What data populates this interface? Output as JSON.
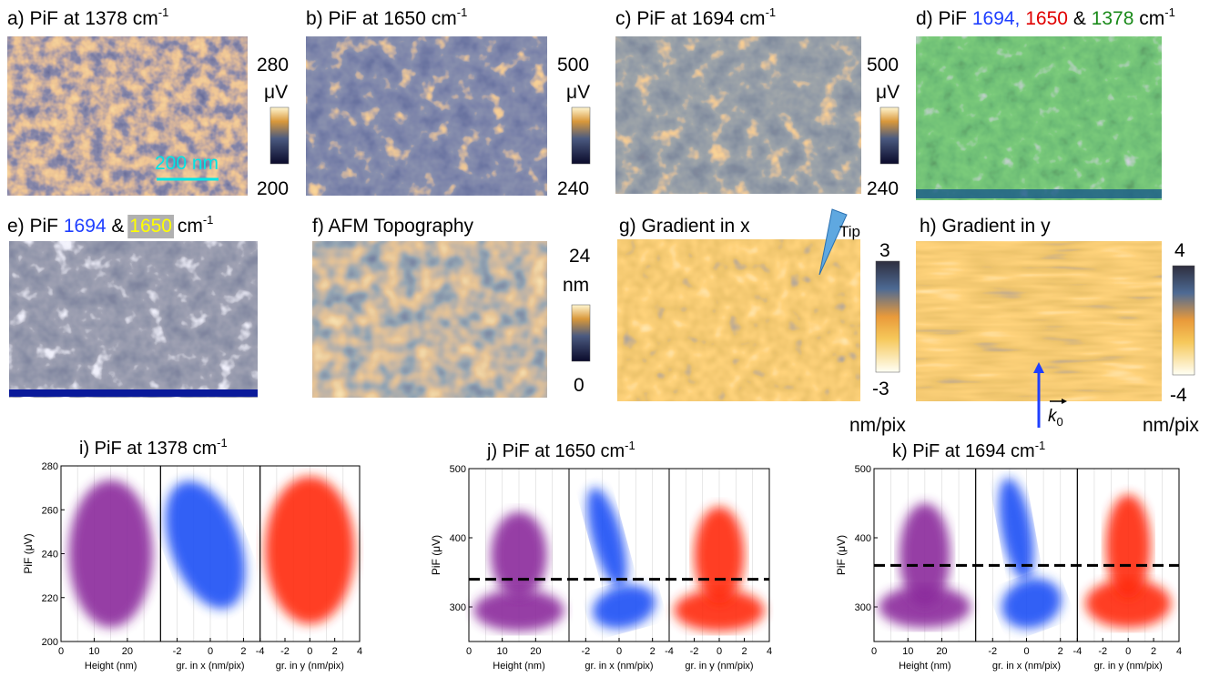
{
  "panels": [
    {
      "title": "a) PiF at 1378 cm",
      "sup": "-1",
      "cbar": {
        "max": 280,
        "unit": "μV",
        "min": 200
      },
      "scalebar": "200 nm"
    },
    {
      "title": "b) PiF at 1650 cm",
      "sup": "-1",
      "cbar": {
        "max": 500,
        "unit": "μV",
        "min": 240
      }
    },
    {
      "title": "c) PiF at 1694 cm",
      "sup": "-1",
      "cbar": {
        "max": 500,
        "unit": "μV",
        "min": 240
      }
    },
    {
      "title": [
        "d) PiF ",
        "1694,",
        "1650",
        "&",
        "1378",
        "cm"
      ],
      "colors": [
        "#000000",
        "#1f3fff",
        "#e00000",
        "#000000",
        "#1a8a1a",
        "#000000"
      ],
      "sup": "-1"
    },
    {
      "title": [
        "e) PiF ",
        "1694",
        "&",
        "1650",
        "cm"
      ],
      "colors": [
        "#000000",
        "#1f3fff",
        "#000000",
        "#ffff00",
        "#000000"
      ],
      "sup": "-1"
    },
    {
      "title": "f) AFM Topography",
      "cbar": {
        "max": 24,
        "unit": "nm",
        "min": 0
      }
    },
    {
      "title": "g) Gradient in x",
      "tip": "Tip",
      "cbar": {
        "max": 3,
        "min": -3,
        "unit": "nm/pix"
      }
    },
    {
      "title": "h) Gradient in y",
      "cbar": {
        "max": 4,
        "min": -4,
        "unit": "nm/pix"
      },
      "k": "k",
      "k_sub": "0"
    }
  ],
  "plots": [
    {
      "title": "i) PiF at 1378 cm",
      "sup": "-1",
      "ylabel": "PiF (μV)",
      "ylim": [
        200,
        280
      ],
      "yticks": [
        200,
        220,
        240,
        260,
        280
      ],
      "subplots": [
        {
          "xlabel": "Height (nm)",
          "xlim": [
            0,
            30
          ],
          "xticks": [
            0,
            10,
            20
          ],
          "color": "#8b2a9c"
        },
        {
          "xlabel": "gr. in x (nm/pix)",
          "xlim": [
            -3,
            3
          ],
          "xticks": [
            -2,
            0,
            2
          ],
          "color": "#1a4ff5"
        },
        {
          "xlabel": "gr. in y (nm/pix)",
          "xlim": [
            -4,
            4
          ],
          "xticks": [
            -4,
            -2,
            0,
            2,
            4
          ],
          "color": "#ff2a10"
        }
      ]
    },
    {
      "title": "j) PiF at 1650 cm",
      "sup": "-1",
      "ylabel": "PiF (μV)",
      "ylim": [
        250,
        500
      ],
      "yticks": [
        300,
        400,
        500
      ],
      "threshold": 340,
      "subplots": [
        {
          "xlabel": "Height (nm)",
          "xlim": [
            0,
            30
          ],
          "xticks": [
            0,
            10,
            20
          ],
          "color": "#8b2a9c"
        },
        {
          "xlabel": "gr. in x (nm/pix)",
          "xlim": [
            -3,
            3
          ],
          "xticks": [
            -2,
            0,
            2
          ],
          "color": "#1a4ff5"
        },
        {
          "xlabel": "gr. in y (nm/pix)",
          "xlim": [
            -4,
            4
          ],
          "xticks": [
            -4,
            -2,
            0,
            2,
            4
          ],
          "color": "#ff2a10"
        }
      ]
    },
    {
      "title": "k) PiF at 1694 cm",
      "sup": "-1",
      "ylabel": "PiF (μV)",
      "ylim": [
        250,
        500
      ],
      "yticks": [
        300,
        400,
        500
      ],
      "threshold": 360,
      "subplots": [
        {
          "xlabel": "Height (nm)",
          "xlim": [
            0,
            30
          ],
          "xticks": [
            0,
            10,
            20
          ],
          "color": "#8b2a9c"
        },
        {
          "xlabel": "gr. in x (nm/pix)",
          "xlim": [
            -3,
            3
          ],
          "xticks": [
            -2,
            0,
            2
          ],
          "color": "#1a4ff5"
        },
        {
          "xlabel": "gr. in y (nm/pix)",
          "xlim": [
            -4,
            4
          ],
          "xticks": [
            -4,
            -2,
            0,
            2,
            4
          ],
          "color": "#ff2a10"
        }
      ]
    }
  ]
}
